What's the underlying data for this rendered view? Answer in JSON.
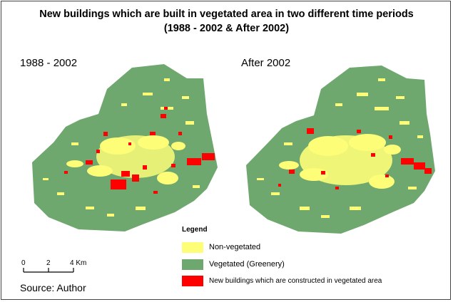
{
  "title_line1": "New buildings which are built in vegetated area in two different time periods",
  "title_line2": "(1988 - 2002 & After 2002)",
  "panels": [
    {
      "label": "1988 - 2002"
    },
    {
      "label": "After 2002"
    }
  ],
  "legend": {
    "title": "Legend",
    "items": [
      {
        "label": "Non-vegetated",
        "color": "#fdfd78"
      },
      {
        "label": "Vegetated (Greenery)",
        "color": "#6fa86f"
      },
      {
        "label": "New buildings which are constructed in vegetated area",
        "color": "#ff0000"
      }
    ]
  },
  "scale_bar": {
    "ticks": [
      "0",
      "2",
      "4 Km"
    ]
  },
  "source": "Source: Author"
}
